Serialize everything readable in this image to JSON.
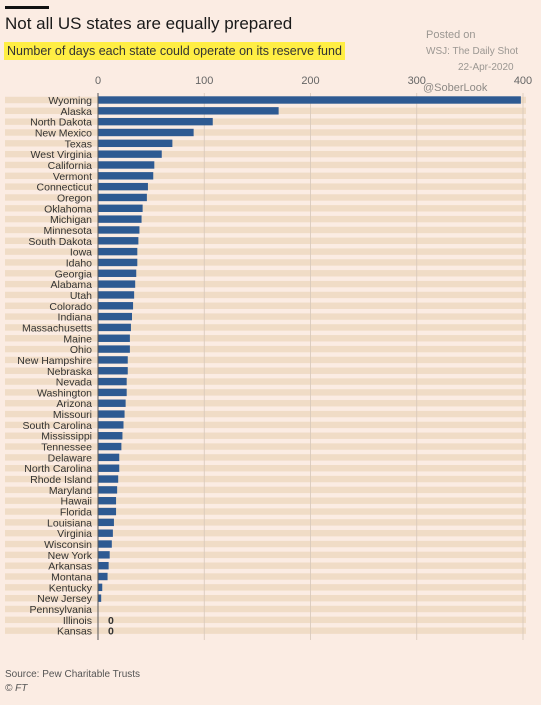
{
  "header": {
    "title": "Not all US states are equally prepared",
    "subtitle": "Number of days each state could operate on its reserve fund"
  },
  "watermark": {
    "posted_on": "Posted on",
    "source": "WSJ: The Daily Shot",
    "date": "22-Apr-2020",
    "handle": "@SoberLook"
  },
  "footer": {
    "source": "Source: Pew Charitable Trusts",
    "credit": "© FT"
  },
  "colors": {
    "bar": "#2e5a92",
    "background": "#fbece3",
    "stripe": "#f0dcc6"
  },
  "chart_data": {
    "type": "bar",
    "orientation": "horizontal",
    "xlim": [
      0,
      400
    ],
    "x_ticks": [
      0,
      100,
      200,
      300,
      400
    ],
    "grid": true,
    "categories": [
      "Wyoming",
      "Alaska",
      "North Dakota",
      "New Mexico",
      "Texas",
      "West Virginia",
      "California",
      "Vermont",
      "Connecticut",
      "Oregon",
      "Oklahoma",
      "Michigan",
      "Minnesota",
      "South Dakota",
      "Iowa",
      "Idaho",
      "Georgia",
      "Alabama",
      "Utah",
      "Colorado",
      "Indiana",
      "Massachusetts",
      "Maine",
      "Ohio",
      "New Hampshire",
      "Nebraska",
      "Nevada",
      "Washington",
      "Arizona",
      "Missouri",
      "South Carolina",
      "Mississippi",
      "Tennessee",
      "Delaware",
      "North Carolina",
      "Rhode Island",
      "Maryland",
      "Hawaii",
      "Florida",
      "Louisiana",
      "Virginia",
      "Wisconsin",
      "New York",
      "Arkansas",
      "Montana",
      "Kentucky",
      "New Jersey",
      "Pennsylvania",
      "Illinois",
      "Kansas"
    ],
    "values": [
      398,
      170,
      108,
      90,
      70,
      60,
      53,
      52,
      47,
      46,
      42,
      41,
      39,
      38,
      37,
      37,
      36,
      35,
      34,
      33,
      32,
      31,
      30,
      30,
      28,
      28,
      27,
      27,
      26,
      25,
      24,
      23,
      22,
      20,
      20,
      19,
      18,
      17,
      17,
      15,
      14,
      13,
      11,
      10,
      9,
      4,
      3,
      0,
      0,
      0
    ],
    "zero_labels": {
      "Illinois": "0",
      "Kansas": "0"
    }
  }
}
